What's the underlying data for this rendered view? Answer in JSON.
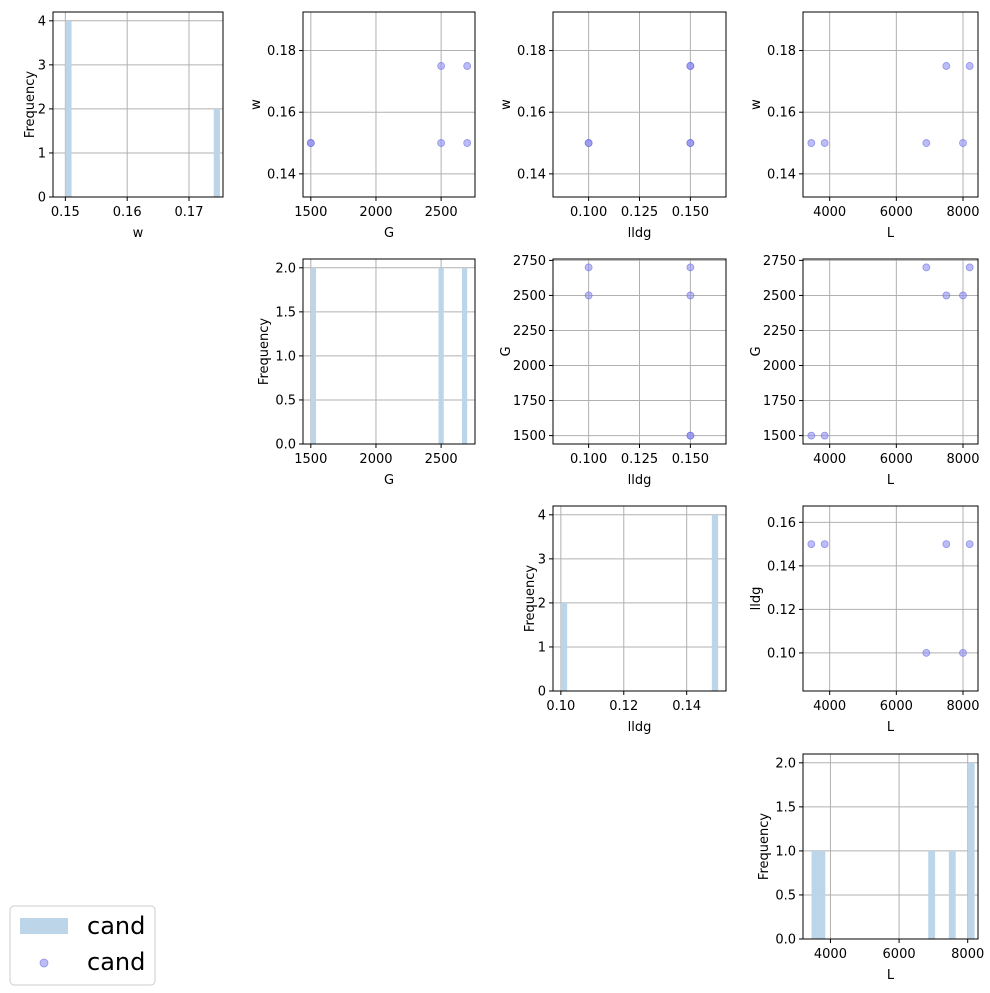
{
  "figure": {
    "legend": {
      "entries": [
        {
          "label": "cand",
          "kind": "bar",
          "color": "#bcd5e8"
        },
        {
          "label": "cand",
          "kind": "point",
          "color": "#8f8ff0"
        }
      ],
      "placement": "bottom-left"
    }
  },
  "chart_data": [
    {
      "id": "hist-w",
      "type": "bar",
      "xlabel": "w",
      "ylabel": "Frequency",
      "xlim": [
        0.148,
        0.1755
      ],
      "ylim": [
        0,
        4.2
      ],
      "xticks": [
        0.15,
        0.16,
        0.17
      ],
      "xtick_labels": [
        "0.15",
        "0.16",
        "0.17"
      ],
      "yticks": [
        0,
        1,
        2,
        3,
        4
      ],
      "ytick_labels": [
        "0",
        "1",
        "2",
        "3",
        "4"
      ],
      "bars": [
        {
          "x0": 0.15,
          "x1": 0.151,
          "value": 4
        },
        {
          "x0": 0.174,
          "x1": 0.175,
          "value": 2
        }
      ],
      "grid": true
    },
    {
      "id": "scatter-G-w",
      "type": "scatter",
      "xlabel": "G",
      "ylabel": "w",
      "xlim": [
        1440,
        2760
      ],
      "ylim": [
        0.1325,
        0.1925
      ],
      "xticks": [
        1500,
        2000,
        2500
      ],
      "xtick_labels": [
        "1500",
        "2000",
        "2500"
      ],
      "yticks": [
        0.14,
        0.16,
        0.18
      ],
      "ytick_labels": [
        "0.14",
        "0.16",
        "0.18"
      ],
      "points": [
        [
          1500,
          0.15
        ],
        [
          1500,
          0.15
        ],
        [
          2500,
          0.175
        ],
        [
          2700,
          0.175
        ],
        [
          2500,
          0.15
        ],
        [
          2700,
          0.15
        ]
      ],
      "grid": true
    },
    {
      "id": "scatter-lldg-w",
      "type": "scatter",
      "xlabel": "lldg",
      "ylabel": "w",
      "xlim": [
        0.0825,
        0.1675
      ],
      "ylim": [
        0.1325,
        0.1925
      ],
      "xticks": [
        0.1,
        0.125,
        0.15
      ],
      "xtick_labels": [
        "0.100",
        "0.125",
        "0.150"
      ],
      "yticks": [
        0.14,
        0.16,
        0.18
      ],
      "ytick_labels": [
        "0.14",
        "0.16",
        "0.18"
      ],
      "points": [
        [
          0.1,
          0.15
        ],
        [
          0.1,
          0.15
        ],
        [
          0.15,
          0.175
        ],
        [
          0.15,
          0.175
        ],
        [
          0.15,
          0.15
        ],
        [
          0.15,
          0.15
        ]
      ],
      "grid": true
    },
    {
      "id": "scatter-L-w",
      "type": "scatter",
      "xlabel": "L",
      "ylabel": "w",
      "xlim": [
        3200,
        8450
      ],
      "ylim": [
        0.1325,
        0.1925
      ],
      "xticks": [
        4000,
        6000,
        8000
      ],
      "xtick_labels": [
        "4000",
        "6000",
        "8000"
      ],
      "yticks": [
        0.14,
        0.16,
        0.18
      ],
      "ytick_labels": [
        "0.14",
        "0.16",
        "0.18"
      ],
      "points": [
        [
          3450,
          0.15
        ],
        [
          3850,
          0.15
        ],
        [
          6900,
          0.15
        ],
        [
          7500,
          0.175
        ],
        [
          8000,
          0.15
        ],
        [
          8200,
          0.175
        ]
      ],
      "grid": true
    },
    {
      "id": "hist-G",
      "type": "bar",
      "xlabel": "G",
      "ylabel": "Frequency",
      "xlim": [
        1440,
        2760
      ],
      "ylim": [
        0,
        2.1
      ],
      "xticks": [
        1500,
        2000,
        2500
      ],
      "xtick_labels": [
        "1500",
        "2000",
        "2500"
      ],
      "yticks": [
        0,
        0.5,
        1,
        1.5,
        2
      ],
      "ytick_labels": [
        "0.0",
        "0.5",
        "1.0",
        "1.5",
        "2.0"
      ],
      "bars": [
        {
          "x0": 1500,
          "x1": 1540,
          "value": 2
        },
        {
          "x0": 2480,
          "x1": 2520,
          "value": 2
        },
        {
          "x0": 2660,
          "x1": 2700,
          "value": 2
        }
      ],
      "grid": true
    },
    {
      "id": "scatter-lldg-G",
      "type": "scatter",
      "xlabel": "lldg",
      "ylabel": "G",
      "xlim": [
        0.0825,
        0.1675
      ],
      "ylim": [
        1440,
        2760
      ],
      "xticks": [
        0.1,
        0.125,
        0.15
      ],
      "xtick_labels": [
        "0.100",
        "0.125",
        "0.150"
      ],
      "yticks": [
        1500,
        1750,
        2000,
        2250,
        2500,
        2750
      ],
      "ytick_labels": [
        "1500",
        "1750",
        "2000",
        "2250",
        "2500",
        "2750"
      ],
      "points": [
        [
          0.1,
          2700
        ],
        [
          0.1,
          2500
        ],
        [
          0.15,
          2700
        ],
        [
          0.15,
          2500
        ],
        [
          0.15,
          1500
        ],
        [
          0.15,
          1500
        ]
      ],
      "grid": true
    },
    {
      "id": "scatter-L-G",
      "type": "scatter",
      "xlabel": "L",
      "ylabel": "G",
      "xlim": [
        3200,
        8450
      ],
      "ylim": [
        1440,
        2760
      ],
      "xticks": [
        4000,
        6000,
        8000
      ],
      "xtick_labels": [
        "4000",
        "6000",
        "8000"
      ],
      "yticks": [
        1500,
        1750,
        2000,
        2250,
        2500,
        2750
      ],
      "ytick_labels": [
        "1500",
        "1750",
        "2000",
        "2250",
        "2500",
        "2750"
      ],
      "points": [
        [
          3450,
          1500
        ],
        [
          3850,
          1500
        ],
        [
          6900,
          2700
        ],
        [
          7500,
          2500
        ],
        [
          8000,
          2500
        ],
        [
          8200,
          2700
        ]
      ],
      "grid": true
    },
    {
      "id": "hist-lldg",
      "type": "bar",
      "xlabel": "lldg",
      "ylabel": "Frequency",
      "xlim": [
        0.0975,
        0.1525
      ],
      "ylim": [
        0,
        4.2
      ],
      "xticks": [
        0.1,
        0.12,
        0.14
      ],
      "xtick_labels": [
        "0.10",
        "0.12",
        "0.14"
      ],
      "yticks": [
        0,
        1,
        2,
        3,
        4
      ],
      "ytick_labels": [
        "0",
        "1",
        "2",
        "3",
        "4"
      ],
      "bars": [
        {
          "x0": 0.1,
          "x1": 0.102,
          "value": 2
        },
        {
          "x0": 0.148,
          "x1": 0.15,
          "value": 4
        }
      ],
      "grid": true
    },
    {
      "id": "scatter-L-lldg",
      "type": "scatter",
      "xlabel": "L",
      "ylabel": "lldg",
      "xlim": [
        3200,
        8450
      ],
      "ylim": [
        0.0825,
        0.1675
      ],
      "xticks": [
        4000,
        6000,
        8000
      ],
      "xtick_labels": [
        "4000",
        "6000",
        "8000"
      ],
      "yticks": [
        0.1,
        0.12,
        0.14,
        0.16
      ],
      "ytick_labels": [
        "0.10",
        "0.12",
        "0.14",
        "0.16"
      ],
      "points": [
        [
          3450,
          0.15
        ],
        [
          3850,
          0.15
        ],
        [
          6900,
          0.1
        ],
        [
          7500,
          0.15
        ],
        [
          8000,
          0.1
        ],
        [
          8200,
          0.15
        ]
      ],
      "grid": true
    },
    {
      "id": "hist-L",
      "type": "bar",
      "xlabel": "L",
      "ylabel": "Frequency",
      "xlim": [
        3200,
        8300
      ],
      "ylim": [
        0,
        2.1
      ],
      "xticks": [
        4000,
        6000,
        8000
      ],
      "xtick_labels": [
        "4000",
        "6000",
        "8000"
      ],
      "yticks": [
        0,
        0.5,
        1,
        1.5,
        2
      ],
      "ytick_labels": [
        "0.0",
        "0.5",
        "1.0",
        "1.5",
        "2.0"
      ],
      "bars": [
        {
          "x0": 3450,
          "x1": 3650,
          "value": 1
        },
        {
          "x0": 3650,
          "x1": 3850,
          "value": 1
        },
        {
          "x0": 6850,
          "x1": 7050,
          "value": 1
        },
        {
          "x0": 7450,
          "x1": 7650,
          "value": 1
        },
        {
          "x0": 8000,
          "x1": 8200,
          "value": 2
        }
      ],
      "grid": true
    }
  ]
}
